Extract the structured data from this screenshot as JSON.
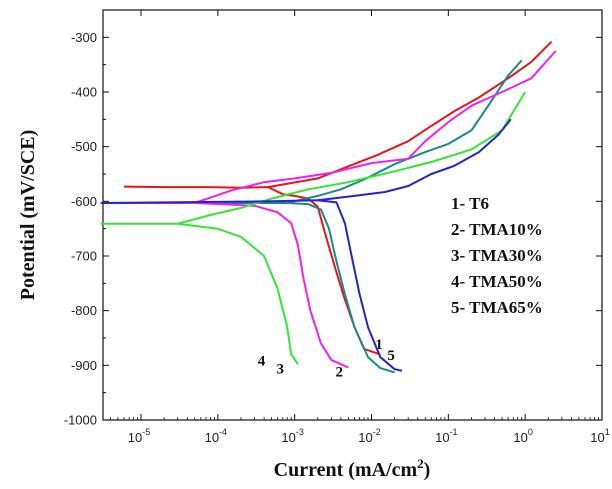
{
  "chart_data": {
    "type": "line",
    "xscale": "log",
    "xlim": [
      3.2e-06,
      10
    ],
    "ylim": [
      -1000,
      -250
    ],
    "xlabel": "Current (mA/cm",
    "xlabel_sup": "2",
    "xlabel_end": ")",
    "ylabel": "Potential (mV/SCE)",
    "grid": false,
    "legend_position": "right",
    "x_ticks": [
      {
        "value": 1e-05,
        "base": "10",
        "exp": "-5"
      },
      {
        "value": 0.0001,
        "base": "10",
        "exp": "-4"
      },
      {
        "value": 0.001,
        "base": "10",
        "exp": "-3"
      },
      {
        "value": 0.01,
        "base": "10",
        "exp": "-2"
      },
      {
        "value": 0.1,
        "base": "10",
        "exp": "-1"
      },
      {
        "value": 1,
        "base": "10",
        "exp": "0"
      },
      {
        "value": 10,
        "base": "10",
        "exp": "1"
      }
    ],
    "y_ticks": [
      {
        "value": -300,
        "label": "-300"
      },
      {
        "value": -400,
        "label": "-400"
      },
      {
        "value": -500,
        "label": "-500"
      },
      {
        "value": -600,
        "label": "-600"
      },
      {
        "value": -700,
        "label": "-700"
      },
      {
        "value": -800,
        "label": "-800"
      },
      {
        "value": -900,
        "label": "-900"
      },
      {
        "value": -1000,
        "label": "-1000"
      }
    ],
    "legend": [
      "1- T6",
      "2- TMA10%",
      "3- TMA30%",
      "4- TMA50%",
      "5- TMA65%"
    ],
    "series": [
      {
        "label": "1",
        "color": "#e8151b",
        "label_pos": [
          0.0125,
          -870
        ],
        "points": [
          [
            6e-06,
            -573
          ],
          [
            2e-05,
            -574
          ],
          [
            8e-05,
            -574
          ],
          [
            0.0002,
            -575
          ],
          [
            0.00045,
            -574
          ],
          [
            0.0007,
            -587
          ],
          [
            0.001,
            -590
          ],
          [
            0.0015,
            -595
          ],
          [
            0.002,
            -610
          ],
          [
            0.0025,
            -660
          ],
          [
            0.0035,
            -730
          ],
          [
            0.0045,
            -780
          ],
          [
            0.006,
            -830
          ],
          [
            0.008,
            -870
          ],
          [
            0.013,
            -880
          ]
        ],
        "anodic": [
          [
            0.00045,
            -574
          ],
          [
            0.002,
            -558
          ],
          [
            0.005,
            -536
          ],
          [
            0.012,
            -515
          ],
          [
            0.03,
            -490
          ],
          [
            0.06,
            -462
          ],
          [
            0.12,
            -435
          ],
          [
            0.25,
            -410
          ],
          [
            0.6,
            -375
          ],
          [
            1.2,
            -345
          ],
          [
            2.2,
            -308
          ]
        ]
      },
      {
        "label": "2",
        "color": "#1a8a8a",
        "label_pos": [
          0.0038,
          -920
        ],
        "points": [
          [
            3e-06,
            -603
          ],
          [
            0.0001,
            -603
          ],
          [
            0.0008,
            -603
          ],
          [
            0.0015,
            -605
          ],
          [
            0.0022,
            -615
          ],
          [
            0.0028,
            -650
          ],
          [
            0.0035,
            -710
          ],
          [
            0.0045,
            -770
          ],
          [
            0.006,
            -830
          ],
          [
            0.009,
            -885
          ],
          [
            0.013,
            -905
          ],
          [
            0.02,
            -913
          ]
        ],
        "anodic": [
          [
            0.0008,
            -603
          ],
          [
            0.002,
            -590
          ],
          [
            0.004,
            -578
          ],
          [
            0.008,
            -560
          ],
          [
            0.02,
            -532
          ],
          [
            0.05,
            -510
          ],
          [
            0.1,
            -495
          ],
          [
            0.2,
            -470
          ],
          [
            0.35,
            -420
          ],
          [
            0.6,
            -370
          ],
          [
            0.9,
            -342
          ]
        ]
      },
      {
        "label": "3",
        "color": "#ee22ee",
        "label_pos": [
          0.00065,
          -915
        ],
        "points": [
          [
            3e-06,
            -603
          ],
          [
            5e-05,
            -603
          ],
          [
            0.0003,
            -608
          ],
          [
            0.0006,
            -620
          ],
          [
            0.0009,
            -640
          ],
          [
            0.0011,
            -680
          ],
          [
            0.0013,
            -740
          ],
          [
            0.0016,
            -800
          ],
          [
            0.0022,
            -860
          ],
          [
            0.003,
            -890
          ],
          [
            0.005,
            -904
          ]
        ],
        "anodic": [
          [
            5e-05,
            -603
          ],
          [
            0.00015,
            -580
          ],
          [
            0.0004,
            -565
          ],
          [
            0.001,
            -558
          ],
          [
            0.003,
            -548
          ],
          [
            0.01,
            -530
          ],
          [
            0.03,
            -522
          ],
          [
            0.05,
            -490
          ],
          [
            0.1,
            -455
          ],
          [
            0.2,
            -425
          ],
          [
            0.5,
            -400
          ],
          [
            1.2,
            -375
          ],
          [
            2.5,
            -325
          ]
        ]
      },
      {
        "label": "4",
        "color": "#33e633",
        "label_pos": [
          0.00037,
          -900
        ],
        "points": [
          [
            3e-06,
            -641
          ],
          [
            3e-05,
            -641
          ],
          [
            0.0001,
            -650
          ],
          [
            0.0002,
            -665
          ],
          [
            0.0004,
            -700
          ],
          [
            0.0006,
            -760
          ],
          [
            0.0008,
            -830
          ],
          [
            0.0009,
            -880
          ],
          [
            0.0011,
            -898
          ]
        ],
        "anodic": [
          [
            3e-05,
            -641
          ],
          [
            8e-05,
            -625
          ],
          [
            0.0002,
            -612
          ],
          [
            0.0005,
            -595
          ],
          [
            0.0015,
            -578
          ],
          [
            0.005,
            -565
          ],
          [
            0.02,
            -545
          ],
          [
            0.06,
            -528
          ],
          [
            0.2,
            -505
          ],
          [
            0.5,
            -470
          ],
          [
            1.0,
            -400
          ]
        ]
      },
      {
        "label": "5",
        "color": "#2424cc",
        "label_pos": [
          0.018,
          -890
        ],
        "points": [
          [
            3e-06,
            -603
          ],
          [
            0.0005,
            -600
          ],
          [
            0.002,
            -598
          ],
          [
            0.0035,
            -602
          ],
          [
            0.0045,
            -640
          ],
          [
            0.0055,
            -700
          ],
          [
            0.007,
            -770
          ],
          [
            0.009,
            -830
          ],
          [
            0.013,
            -885
          ],
          [
            0.02,
            -907
          ],
          [
            0.025,
            -910
          ]
        ],
        "anodic": [
          [
            0.002,
            -598
          ],
          [
            0.006,
            -590
          ],
          [
            0.015,
            -583
          ],
          [
            0.03,
            -572
          ],
          [
            0.06,
            -550
          ],
          [
            0.12,
            -535
          ],
          [
            0.25,
            -510
          ],
          [
            0.45,
            -478
          ],
          [
            0.65,
            -450
          ]
        ]
      }
    ]
  }
}
